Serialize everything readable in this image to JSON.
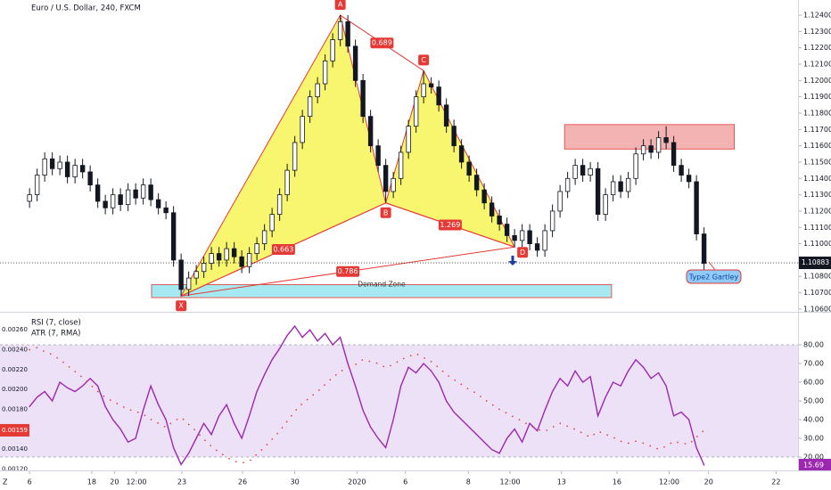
{
  "chart_data": [
    {
      "type": "candlestick",
      "title": "Euro / U.S. Dollar, 240, FXCM",
      "x": [
        0,
        1,
        2,
        3,
        4,
        5,
        6,
        7,
        8,
        9,
        10,
        11,
        12,
        13,
        14,
        15,
        16,
        17,
        18,
        19,
        20,
        21,
        22,
        23,
        24,
        25,
        26,
        27,
        28,
        29,
        30,
        31,
        32,
        33,
        34,
        35,
        36,
        37,
        38,
        39,
        40,
        41,
        42,
        43,
        44,
        45,
        46,
        47,
        48,
        49,
        50,
        51,
        52,
        53,
        54,
        55,
        56,
        57,
        58,
        59,
        60,
        61,
        62,
        63,
        64,
        65,
        66,
        67,
        68,
        69,
        70,
        71,
        72,
        73,
        74,
        75,
        76,
        77,
        78,
        79,
        80,
        81,
        82,
        83,
        84,
        85,
        86,
        87,
        88,
        89
      ],
      "open": [
        1.1126,
        1.113,
        1.1142,
        1.1152,
        1.1146,
        1.115,
        1.1141,
        1.1148,
        1.1144,
        1.1136,
        1.1126,
        1.1122,
        1.113,
        1.1124,
        1.1133,
        1.1128,
        1.1136,
        1.1127,
        1.1122,
        1.1119,
        1.109,
        1.1072,
        1.1079,
        1.1083,
        1.1088,
        1.1094,
        1.109,
        1.1097,
        1.1092,
        1.1086,
        1.1094,
        1.11,
        1.1108,
        1.1118,
        1.113,
        1.1145,
        1.1162,
        1.1178,
        1.119,
        1.1198,
        1.1212,
        1.1225,
        1.1236,
        1.1221,
        1.12,
        1.1178,
        1.116,
        1.1148,
        1.1132,
        1.114,
        1.1156,
        1.1172,
        1.119,
        1.1198,
        1.1196,
        1.1185,
        1.1172,
        1.116,
        1.115,
        1.1142,
        1.1133,
        1.1125,
        1.1117,
        1.1112,
        1.1105,
        1.1102,
        1.1108,
        1.11,
        1.1096,
        1.1108,
        1.112,
        1.1132,
        1.114,
        1.1148,
        1.1142,
        1.1146,
        1.1118,
        1.113,
        1.1138,
        1.1132,
        1.114,
        1.1155,
        1.116,
        1.1156,
        1.1165,
        1.1162,
        1.1148,
        1.1142,
        1.1138,
        1.1106
      ],
      "high": [
        1.1134,
        1.1146,
        1.1156,
        1.1156,
        1.1154,
        1.1154,
        1.1152,
        1.1152,
        1.1148,
        1.114,
        1.113,
        1.1134,
        1.1134,
        1.1137,
        1.1137,
        1.114,
        1.114,
        1.1131,
        1.1126,
        1.1123,
        1.1094,
        1.1083,
        1.1087,
        1.1092,
        1.1098,
        1.1098,
        1.1101,
        1.1101,
        1.1096,
        1.1098,
        1.1104,
        1.1112,
        1.1122,
        1.1134,
        1.1149,
        1.1166,
        1.1182,
        1.1194,
        1.1202,
        1.1216,
        1.1229,
        1.124,
        1.124,
        1.1225,
        1.1204,
        1.1182,
        1.1164,
        1.1152,
        1.1144,
        1.116,
        1.1176,
        1.1194,
        1.1206,
        1.1202,
        1.12,
        1.1189,
        1.1176,
        1.1164,
        1.1154,
        1.1146,
        1.1137,
        1.1129,
        1.1121,
        1.1116,
        1.1109,
        1.1112,
        1.1112,
        1.1104,
        1.1112,
        1.1124,
        1.1136,
        1.1144,
        1.1152,
        1.1152,
        1.115,
        1.115,
        1.1134,
        1.1142,
        1.1142,
        1.1144,
        1.1159,
        1.1164,
        1.1164,
        1.1169,
        1.1172,
        1.1166,
        1.1152,
        1.1146,
        1.1142,
        1.111
      ],
      "low": [
        1.1122,
        1.1126,
        1.1138,
        1.1142,
        1.1142,
        1.1137,
        1.1137,
        1.114,
        1.1132,
        1.1122,
        1.1118,
        1.1118,
        1.112,
        1.112,
        1.1124,
        1.1124,
        1.1123,
        1.1118,
        1.1115,
        1.1086,
        1.1068,
        1.1068,
        1.1075,
        1.1079,
        1.1084,
        1.1086,
        1.1086,
        1.1088,
        1.1082,
        1.1082,
        1.109,
        1.1096,
        1.1104,
        1.1114,
        1.1126,
        1.1141,
        1.1158,
        1.1174,
        1.1186,
        1.1194,
        1.1208,
        1.1221,
        1.1217,
        1.1196,
        1.1174,
        1.1156,
        1.1144,
        1.1125,
        1.1128,
        1.1136,
        1.1152,
        1.1168,
        1.1186,
        1.1192,
        1.1181,
        1.1168,
        1.1156,
        1.1146,
        1.1138,
        1.1129,
        1.1121,
        1.1113,
        1.1108,
        1.1101,
        1.1098,
        1.1098,
        1.1096,
        1.1092,
        1.1092,
        1.1104,
        1.1116,
        1.1128,
        1.1136,
        1.1138,
        1.1138,
        1.1114,
        1.1114,
        1.1126,
        1.1128,
        1.1128,
        1.1136,
        1.1151,
        1.1152,
        1.1152,
        1.1158,
        1.1144,
        1.1138,
        1.1134,
        1.1102,
        1.1084
      ],
      "close": [
        1.113,
        1.1142,
        1.1152,
        1.1146,
        1.115,
        1.1141,
        1.1148,
        1.1144,
        1.1136,
        1.1126,
        1.1122,
        1.113,
        1.1124,
        1.1133,
        1.1128,
        1.1136,
        1.1127,
        1.1122,
        1.1119,
        1.109,
        1.1072,
        1.1079,
        1.1083,
        1.1088,
        1.1094,
        1.109,
        1.1097,
        1.1092,
        1.1086,
        1.1094,
        1.11,
        1.1108,
        1.1118,
        1.113,
        1.1145,
        1.1162,
        1.1178,
        1.119,
        1.1198,
        1.1212,
        1.1225,
        1.1236,
        1.1221,
        1.12,
        1.1178,
        1.116,
        1.1148,
        1.1132,
        1.114,
        1.1156,
        1.1172,
        1.119,
        1.1198,
        1.1196,
        1.1185,
        1.1172,
        1.116,
        1.115,
        1.1142,
        1.1133,
        1.1125,
        1.1117,
        1.1112,
        1.1105,
        1.1102,
        1.1108,
        1.11,
        1.1096,
        1.1108,
        1.112,
        1.1132,
        1.114,
        1.1148,
        1.1142,
        1.1146,
        1.1118,
        1.113,
        1.1138,
        1.1132,
        1.114,
        1.1155,
        1.116,
        1.1156,
        1.1165,
        1.1162,
        1.1148,
        1.1142,
        1.1138,
        1.1106,
        1.1088
      ],
      "up_color": "#ffffff",
      "down_color": "#131722",
      "xlim": [
        -3.9,
        101.4
      ],
      "xticks": [
        {
          "value": 0,
          "label": "6"
        },
        {
          "value": 8.2,
          "label": "18"
        },
        {
          "value": 11.2,
          "label": "20"
        },
        {
          "value": 14.1,
          "label": "12:00"
        },
        {
          "value": 20.1,
          "label": "23"
        },
        {
          "value": 28.1,
          "label": "26"
        },
        {
          "value": 35,
          "label": "30"
        },
        {
          "value": 43.2,
          "label": "2020"
        },
        {
          "value": 49.6,
          "label": "6"
        },
        {
          "value": 57.9,
          "label": "8"
        },
        {
          "value": 63.4,
          "label": "12:00"
        },
        {
          "value": 70.2,
          "label": "13"
        },
        {
          "value": 77.5,
          "label": "16"
        },
        {
          "value": 84.4,
          "label": "12:00"
        },
        {
          "value": 89.6,
          "label": "20"
        },
        {
          "value": 98.5,
          "label": "22"
        }
      ],
      "ylim": [
        1.10583,
        1.12493
      ],
      "yticks": [
        {
          "value": 1.106,
          "label": "1.10600"
        },
        {
          "value": 1.107,
          "label": "1.10700"
        },
        {
          "value": 1.108,
          "label": "1.10800"
        },
        {
          "value": 1.11,
          "label": "1.11000"
        },
        {
          "value": 1.111,
          "label": "1.11100"
        },
        {
          "value": 1.112,
          "label": "1.11200"
        },
        {
          "value": 1.113,
          "label": "1.11300"
        },
        {
          "value": 1.114,
          "label": "1.11400"
        },
        {
          "value": 1.115,
          "label": "1.11500"
        },
        {
          "value": 1.116,
          "label": "1.11600"
        },
        {
          "value": 1.117,
          "label": "1.11700"
        },
        {
          "value": 1.118,
          "label": "1.11800"
        },
        {
          "value": 1.119,
          "label": "1.11900"
        },
        {
          "value": 1.12,
          "label": "1.12000"
        },
        {
          "value": 1.121,
          "label": "1.12100"
        },
        {
          "value": 1.122,
          "label": "1.12200"
        },
        {
          "value": 1.123,
          "label": "1.12300"
        },
        {
          "value": 1.124,
          "label": "1.12400"
        }
      ],
      "last_price": 1.10883,
      "pattern": {
        "color": "#e53935",
        "fill": "#f7f55f",
        "points": [
          {
            "label": "X",
            "x": 20,
            "y": 1.1068
          },
          {
            "label": "A",
            "x": 41,
            "y": 1.124
          },
          {
            "label": "B",
            "x": 47,
            "y": 1.1125
          },
          {
            "label": "C",
            "x": 52,
            "y": 1.1206
          },
          {
            "label": "D",
            "x": 64,
            "y": 1.1098
          }
        ],
        "ratios": [
          0.689,
          0.663,
          1.269,
          0.786
        ]
      },
      "zones": [
        {
          "label": "Demand Zone",
          "x": [
            16.1,
            76.8
          ],
          "y": [
            1.1067,
            1.1075
          ],
          "color": "#a6e9f0"
        },
        {
          "x": [
            70.6,
            93
          ],
          "y": [
            1.1158,
            1.1173
          ],
          "color": "#f4b3b3"
        }
      ],
      "callout": "Type2 Gartley",
      "corner_label": "Z"
    },
    {
      "type": "line",
      "series": [
        {
          "name": "RSI (7, close)",
          "color": "#9c27b0",
          "axis": "y2",
          "values": [
            47,
            52,
            55,
            50,
            60,
            57,
            55,
            58,
            62,
            58,
            47,
            40,
            35,
            28,
            30,
            45,
            58,
            48,
            40,
            25,
            16,
            22,
            30,
            38,
            32,
            42,
            48,
            38,
            30,
            42,
            55,
            64,
            72,
            78,
            85,
            90,
            84,
            88,
            82,
            86,
            80,
            84,
            70,
            58,
            45,
            36,
            30,
            25,
            40,
            58,
            68,
            65,
            70,
            66,
            60,
            50,
            44,
            40,
            36,
            32,
            28,
            24,
            22,
            30,
            35,
            28,
            38,
            34,
            45,
            55,
            62,
            58,
            66,
            60,
            63,
            42,
            52,
            60,
            58,
            66,
            72,
            68,
            62,
            65,
            58,
            42,
            44,
            40,
            25,
            15.69
          ]
        },
        {
          "name": "ATR (7, RMA)",
          "color": "#e53935",
          "values": [
            0.0024,
            0.00242,
            0.00238,
            0.00235,
            0.0023,
            0.00224,
            0.00218,
            0.00212,
            0.00205,
            0.00198,
            0.00192,
            0.00188,
            0.00184,
            0.0018,
            0.00178,
            0.00175,
            0.0017,
            0.00166,
            0.00162,
            0.00168,
            0.00172,
            0.00165,
            0.00158,
            0.0015,
            0.00143,
            0.00137,
            0.00132,
            0.00128,
            0.00126,
            0.00128,
            0.00135,
            0.00142,
            0.0015,
            0.00158,
            0.00168,
            0.00178,
            0.00186,
            0.00192,
            0.00198,
            0.00205,
            0.00212,
            0.00218,
            0.00222,
            0.00225,
            0.0023,
            0.00228,
            0.00226,
            0.00222,
            0.00225,
            0.0023,
            0.00233,
            0.00236,
            0.00232,
            0.00228,
            0.00222,
            0.00215,
            0.0021,
            0.00205,
            0.002,
            0.00196,
            0.0019,
            0.00185,
            0.0018,
            0.00176,
            0.00172,
            0.00168,
            0.00164,
            0.0016,
            0.00158,
            0.00162,
            0.00166,
            0.00163,
            0.0016,
            0.00156,
            0.00152,
            0.00158,
            0.00155,
            0.00152,
            0.00148,
            0.00146,
            0.00148,
            0.00146,
            0.00143,
            0.0014,
            0.00143,
            0.00148,
            0.00146,
            0.00145,
            0.00152,
            0.00159
          ]
        }
      ],
      "ylim": [
        0.001196,
        0.002762
      ],
      "yticks": [
        {
          "value": 0.0012,
          "label": "0.00120"
        },
        {
          "value": 0.0014,
          "label": "0.00140"
        },
        {
          "value": 0.0016,
          "label": "0.00160"
        },
        {
          "value": 0.0018,
          "label": "0.00180"
        },
        {
          "value": 0.002,
          "label": "0.00200"
        },
        {
          "value": 0.0022,
          "label": "0.00220"
        },
        {
          "value": 0.0024,
          "label": "0.00240"
        },
        {
          "value": 0.0026,
          "label": "0.00260"
        }
      ],
      "y2lim": [
        13.33,
        96.67
      ],
      "y2ticks": [
        {
          "value": 20,
          "label": "20.00"
        },
        {
          "value": 30,
          "label": "30.00"
        },
        {
          "value": 40,
          "label": "40.00"
        },
        {
          "value": 50,
          "label": "50.00"
        },
        {
          "value": 60,
          "label": "60.00"
        },
        {
          "value": 70,
          "label": "70.00"
        },
        {
          "value": 80,
          "label": "80.00"
        }
      ],
      "band": [
        20,
        80
      ],
      "band_color": "#ece1f7"
    }
  ]
}
